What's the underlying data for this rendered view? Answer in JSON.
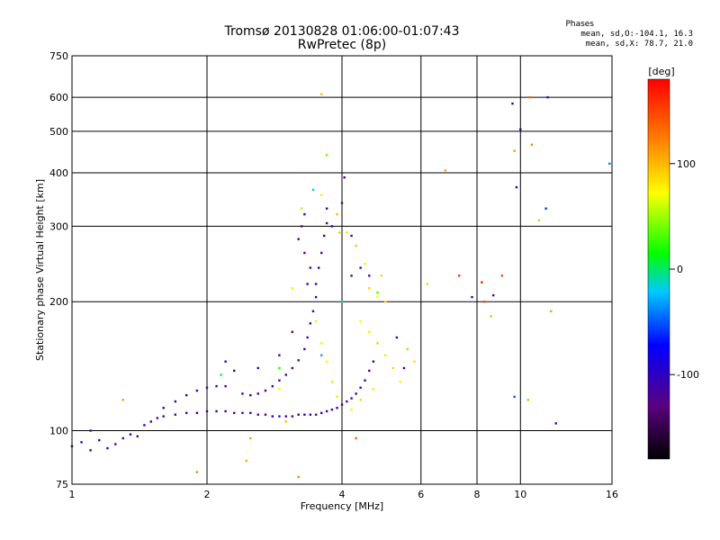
{
  "chart_data": {
    "type": "scatter",
    "title": "Tromsø 20130828 01:06:00-01:07:43",
    "subtitle": "RwPretec (8p)",
    "xlabel": "Frequency [MHz]",
    "ylabel": "Stationary phase Virtual Height [km]",
    "x_scale": "log",
    "y_scale": "log",
    "xlim": [
      1,
      16
    ],
    "ylim": [
      75,
      750
    ],
    "x_ticks": [
      "1",
      "2",
      "4",
      "6",
      "8",
      "10",
      "16"
    ],
    "x_tick_values": [
      1,
      2,
      4,
      6,
      8,
      10,
      16
    ],
    "y_ticks": [
      "750",
      "600",
      "500",
      "400",
      "300",
      "200",
      "100",
      "75"
    ],
    "y_tick_values": [
      750,
      600,
      500,
      400,
      300,
      200,
      100,
      75
    ],
    "grid": true,
    "colorbar": {
      "label": "[deg]",
      "ticks": [
        "100",
        "0",
        "-100"
      ],
      "tick_values": [
        100,
        0,
        -100
      ],
      "range": [
        -180,
        180
      ]
    },
    "stats": {
      "heading": "Phases",
      "line1": "mean, sd,O:-104.1, 16.3",
      "line2": "mean, sd,X: 78.7, 21.0"
    },
    "series": [
      {
        "points": [
          [
            1.0,
            92,
            -105
          ],
          [
            1.05,
            94,
            -110
          ],
          [
            1.1,
            90,
            -100
          ],
          [
            1.15,
            95,
            -115
          ],
          [
            1.2,
            91,
            -105
          ],
          [
            1.25,
            93,
            -120
          ],
          [
            1.3,
            96,
            -110
          ],
          [
            1.35,
            98,
            -100
          ],
          [
            1.4,
            97,
            -115
          ],
          [
            1.45,
            103,
            -105
          ],
          [
            1.5,
            105,
            -110
          ],
          [
            1.55,
            107,
            -120
          ],
          [
            1.6,
            108,
            -105
          ],
          [
            1.7,
            109,
            -115
          ],
          [
            1.8,
            110,
            -110
          ],
          [
            1.9,
            110,
            -105
          ],
          [
            2.0,
            111,
            -115
          ],
          [
            2.1,
            111,
            -110
          ],
          [
            2.2,
            111,
            -120
          ],
          [
            2.3,
            110,
            -105
          ],
          [
            2.4,
            110,
            -115
          ],
          [
            2.5,
            110,
            -110
          ],
          [
            2.6,
            109,
            -120
          ],
          [
            2.7,
            109,
            -110
          ],
          [
            2.8,
            108,
            -105
          ],
          [
            2.9,
            108,
            -115
          ],
          [
            3.0,
            108,
            -110
          ],
          [
            3.1,
            108,
            -120
          ],
          [
            3.2,
            109,
            -115
          ],
          [
            3.3,
            109,
            -105
          ],
          [
            3.4,
            109,
            -110
          ],
          [
            3.5,
            109,
            -120
          ],
          [
            3.6,
            110,
            -110
          ],
          [
            3.7,
            111,
            -115
          ],
          [
            3.8,
            112,
            -105
          ],
          [
            3.9,
            113,
            -110
          ],
          [
            4.0,
            115,
            -115
          ],
          [
            4.1,
            117,
            -120
          ],
          [
            4.2,
            119,
            -110
          ],
          [
            4.3,
            122,
            -105
          ],
          [
            4.4,
            126,
            -115
          ],
          [
            4.5,
            131,
            -110
          ],
          [
            4.6,
            138,
            -120
          ],
          [
            4.7,
            145,
            -105
          ],
          [
            1.6,
            113,
            -110
          ],
          [
            1.7,
            117,
            -115
          ],
          [
            1.8,
            121,
            -105
          ],
          [
            1.9,
            124,
            -110
          ],
          [
            2.0,
            126,
            -115
          ],
          [
            2.1,
            127,
            -110
          ],
          [
            2.2,
            127,
            -120
          ],
          [
            2.4,
            122,
            -105
          ],
          [
            2.5,
            121,
            -110
          ],
          [
            2.6,
            122,
            -115
          ],
          [
            2.7,
            124,
            -110
          ],
          [
            2.8,
            127,
            -105
          ],
          [
            2.9,
            131,
            -115
          ],
          [
            3.0,
            135,
            -110
          ],
          [
            3.1,
            140,
            -120
          ],
          [
            3.2,
            146,
            -110
          ],
          [
            3.3,
            155,
            -115
          ],
          [
            3.35,
            165,
            -105
          ],
          [
            3.4,
            178,
            -110
          ],
          [
            3.45,
            190,
            -120
          ],
          [
            3.5,
            205,
            -115
          ],
          [
            3.5,
            220,
            -110
          ],
          [
            3.55,
            240,
            -105
          ],
          [
            3.6,
            260,
            -115
          ],
          [
            3.65,
            285,
            -110
          ],
          [
            3.7,
            305,
            -120
          ],
          [
            3.7,
            330,
            -110
          ],
          [
            3.3,
            320,
            -105
          ],
          [
            3.25,
            300,
            -115
          ],
          [
            3.2,
            280,
            -110
          ],
          [
            3.3,
            260,
            -120
          ],
          [
            3.4,
            240,
            -110
          ],
          [
            3.35,
            220,
            -105
          ],
          [
            2.2,
            145,
            -110
          ],
          [
            2.3,
            138,
            -115
          ],
          [
            2.6,
            140,
            -105
          ],
          [
            2.9,
            150,
            -110
          ],
          [
            3.1,
            170,
            -115
          ],
          [
            3.8,
            300,
            -110
          ],
          [
            4.05,
            390,
            -120
          ],
          [
            4.0,
            340,
            -115
          ],
          [
            4.2,
            285,
            -110
          ],
          [
            4.4,
            240,
            -105
          ],
          [
            4.2,
            230,
            -110
          ],
          [
            4.6,
            230,
            -115
          ],
          [
            5.3,
            165,
            -110
          ],
          [
            5.5,
            140,
            -105
          ],
          [
            1.1,
            100,
            -115
          ],
          [
            7.8,
            205,
            -110
          ],
          [
            8.7,
            207,
            -115
          ],
          [
            9.6,
            580,
            -110
          ],
          [
            10.0,
            505,
            -105
          ],
          [
            11.5,
            600,
            -110
          ],
          [
            12.0,
            104,
            -115
          ],
          [
            9.8,
            370,
            -110
          ]
        ]
      },
      {
        "points": [
          [
            3.25,
            330,
            90
          ],
          [
            3.6,
            355,
            80
          ],
          [
            3.9,
            320,
            100
          ],
          [
            4.1,
            290,
            85
          ],
          [
            4.3,
            270,
            95
          ],
          [
            4.5,
            245,
            80
          ],
          [
            4.6,
            215,
            90
          ],
          [
            4.8,
            205,
            75
          ],
          [
            5.0,
            200,
            85
          ],
          [
            4.4,
            180,
            70
          ],
          [
            4.6,
            170,
            80
          ],
          [
            4.8,
            160,
            95
          ],
          [
            5.0,
            150,
            80
          ],
          [
            5.2,
            140,
            90
          ],
          [
            5.4,
            130,
            75
          ],
          [
            4.7,
            125,
            80
          ],
          [
            4.4,
            118,
            90
          ],
          [
            4.2,
            112,
            70
          ],
          [
            3.9,
            120,
            85
          ],
          [
            3.8,
            130,
            60
          ],
          [
            3.7,
            145,
            75
          ],
          [
            3.6,
            160,
            65
          ],
          [
            3.5,
            180,
            80
          ],
          [
            2.9,
            125,
            70
          ],
          [
            3.0,
            105,
            100
          ],
          [
            2.5,
            96,
            110
          ],
          [
            3.6,
            610,
            95
          ],
          [
            5.6,
            155,
            100
          ],
          [
            5.8,
            145,
            85
          ],
          [
            6.2,
            220,
            90
          ],
          [
            6.8,
            405,
            110
          ],
          [
            8.6,
            185,
            100
          ],
          [
            9.7,
            450,
            115
          ],
          [
            10.6,
            465,
            120
          ],
          [
            11.0,
            310,
            100
          ],
          [
            11.7,
            190,
            110
          ],
          [
            10.4,
            118,
            105
          ],
          [
            3.95,
            290,
            95
          ],
          [
            4.9,
            230,
            90
          ],
          [
            3.1,
            215,
            80
          ]
        ]
      },
      {
        "points": [
          [
            1.3,
            118,
            110
          ],
          [
            2.45,
            85,
            105
          ],
          [
            1.9,
            80,
            120
          ],
          [
            4.3,
            96,
            140
          ],
          [
            7.3,
            230,
            160
          ],
          [
            8.2,
            222,
            170
          ],
          [
            9.1,
            230,
            150
          ],
          [
            10.5,
            600,
            135
          ],
          [
            8.3,
            200,
            150
          ],
          [
            3.2,
            78,
            120
          ]
        ]
      },
      {
        "points": [
          [
            2.15,
            135,
            10
          ],
          [
            3.45,
            365,
            -20
          ],
          [
            3.7,
            440,
            40
          ],
          [
            2.9,
            140,
            20
          ],
          [
            3.6,
            150,
            -30
          ],
          [
            4.8,
            210,
            30
          ],
          [
            4.0,
            200,
            -10
          ],
          [
            15.8,
            420,
            -40
          ],
          [
            9.7,
            120,
            -50
          ],
          [
            11.4,
            330,
            -60
          ]
        ]
      }
    ]
  }
}
